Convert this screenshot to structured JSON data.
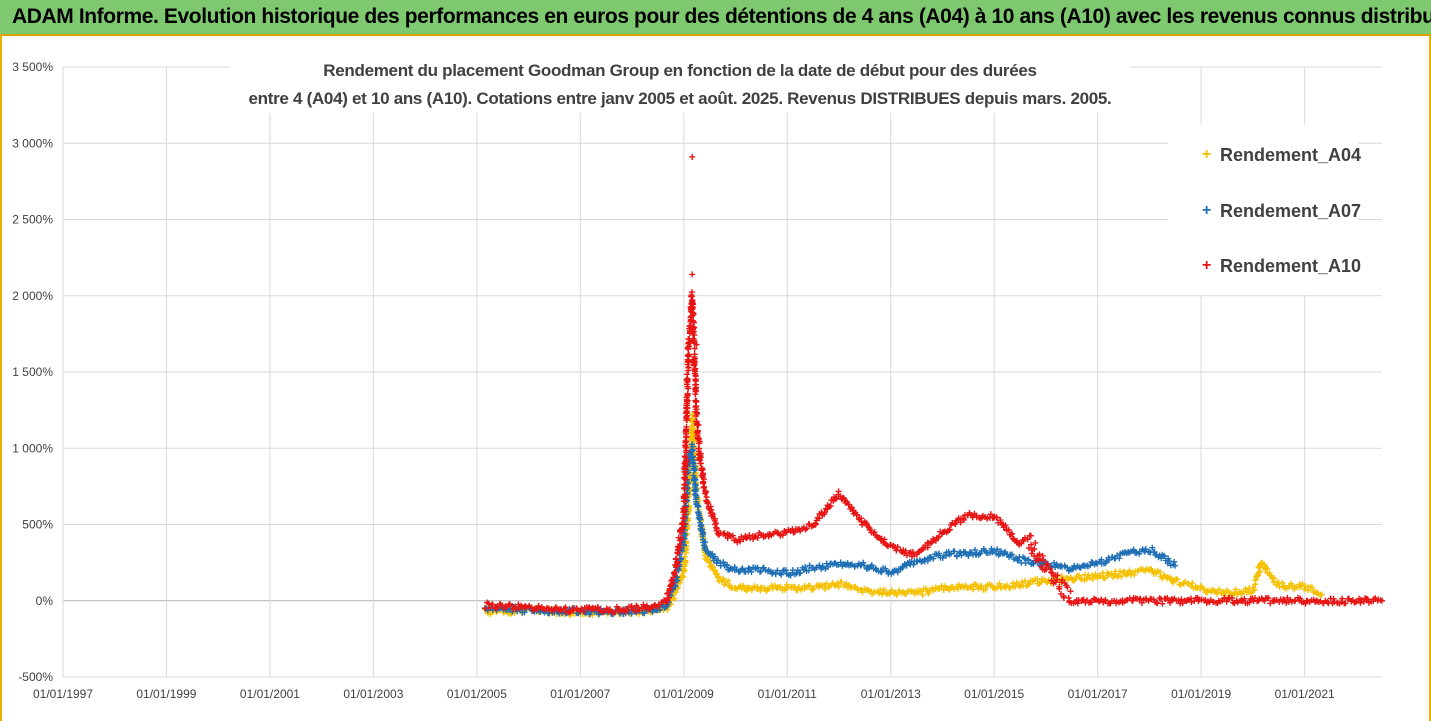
{
  "banner": {
    "text": "ADAM Informe. Evolution historique des performances en euros pour des détentions de 4 ans (A04) à 10 ans (A10) avec les revenus connus distribués"
  },
  "chart_data": {
    "type": "scatter",
    "title_line1": "Rendement du placement Goodman Group en fonction de la date de début pour des durées",
    "title_line2": "entre 4 (A04) et 10 ans (A10). Cotations entre janv 2005 et août. 2025. Revenus DISTRIBUES depuis mars. 2005.",
    "xlabel": "",
    "ylabel": "",
    "x_domain": [
      "1997-01-01",
      "2022-07-01"
    ],
    "y_range": [
      -500,
      3500
    ],
    "y_ticks": [
      -500,
      0,
      500,
      1000,
      1500,
      2000,
      2500,
      3000,
      3500
    ],
    "y_tick_labels": [
      "-500%",
      "0%",
      "500%",
      "1 000%",
      "1 500%",
      "2 000%",
      "2 500%",
      "3 000%",
      "3 500%"
    ],
    "x_ticks": [
      "1997-01-01",
      "1999-01-01",
      "2001-01-01",
      "2003-01-01",
      "2005-01-01",
      "2007-01-01",
      "2009-01-01",
      "2011-01-01",
      "2013-01-01",
      "2015-01-01",
      "2017-01-01",
      "2019-01-01",
      "2021-01-01"
    ],
    "x_tick_labels": [
      "01/01/1997",
      "01/01/1999",
      "01/01/2001",
      "01/01/2003",
      "01/01/2005",
      "01/01/2007",
      "01/01/2009",
      "01/01/2011",
      "01/01/2013",
      "01/01/2015",
      "01/01/2017",
      "01/01/2019",
      "01/01/2021"
    ],
    "grid": "vertical-and-horizontal",
    "legend_position": "right",
    "marker": "+",
    "series": [
      {
        "name": "Rendement_A04",
        "color": "#f5c000",
        "x": [
          "2005-03-01",
          "2005-07-01",
          "2006-01-01",
          "2006-07-01",
          "2007-01-01",
          "2007-07-01",
          "2008-01-01",
          "2008-05-01",
          "2008-09-01",
          "2008-11-01",
          "2009-01-01",
          "2009-02-01",
          "2009-03-01",
          "2009-04-01",
          "2009-05-01",
          "2009-06-01",
          "2009-09-01",
          "2010-01-01",
          "2010-07-01",
          "2011-01-01",
          "2011-07-01",
          "2012-01-01",
          "2012-07-01",
          "2013-01-01",
          "2013-07-01",
          "2014-01-01",
          "2014-07-01",
          "2015-01-01",
          "2015-07-01",
          "2016-01-01",
          "2016-07-01",
          "2017-01-01",
          "2017-07-01",
          "2018-01-01",
          "2018-07-01",
          "2019-01-01",
          "2019-07-01",
          "2020-01-01",
          "2020-03-01",
          "2020-07-01",
          "2021-01-01",
          "2021-05-01"
        ],
        "y": [
          -70,
          -70,
          -65,
          -70,
          -75,
          -75,
          -75,
          -70,
          -50,
          50,
          200,
          600,
          1200,
          700,
          500,
          300,
          150,
          80,
          80,
          90,
          80,
          110,
          60,
          60,
          50,
          80,
          90,
          90,
          110,
          130,
          150,
          160,
          180,
          200,
          130,
          80,
          50,
          70,
          250,
          100,
          90,
          40
        ]
      },
      {
        "name": "Rendement_A07",
        "color": "#1f6fb5",
        "x": [
          "2005-03-01",
          "2005-07-01",
          "2006-01-01",
          "2006-07-01",
          "2007-01-01",
          "2007-07-01",
          "2008-01-01",
          "2008-05-01",
          "2008-09-01",
          "2008-11-01",
          "2009-01-01",
          "2009-02-01",
          "2009-03-01",
          "2009-04-01",
          "2009-05-01",
          "2009-06-01",
          "2009-09-01",
          "2010-01-01",
          "2010-07-01",
          "2011-01-01",
          "2011-07-01",
          "2012-01-01",
          "2012-07-01",
          "2013-01-01",
          "2013-07-01",
          "2014-01-01",
          "2014-07-01",
          "2015-01-01",
          "2015-07-01",
          "2016-01-01",
          "2016-07-01",
          "2017-01-01",
          "2017-07-01",
          "2018-01-01",
          "2018-07-01"
        ],
        "y": [
          -50,
          -55,
          -60,
          -65,
          -70,
          -70,
          -70,
          -60,
          -30,
          120,
          400,
          900,
          1000,
          650,
          500,
          350,
          250,
          200,
          200,
          180,
          220,
          240,
          230,
          180,
          260,
          300,
          310,
          330,
          270,
          240,
          210,
          250,
          300,
          340,
          230
        ]
      },
      {
        "name": "Rendement_A10",
        "color": "#e81515",
        "x": [
          "2005-03-01",
          "2005-07-01",
          "2006-01-01",
          "2006-07-01",
          "2007-01-01",
          "2007-07-01",
          "2008-01-01",
          "2008-05-01",
          "2008-09-01",
          "2008-11-01",
          "2009-01-01",
          "2009-02-01",
          "2009-03-01",
          "2009-04-01",
          "2009-05-01",
          "2009-06-01",
          "2009-09-01",
          "2010-01-01",
          "2010-07-01",
          "2011-01-01",
          "2011-07-01",
          "2012-01-01",
          "2012-07-01",
          "2013-01-01",
          "2013-07-01",
          "2014-01-01",
          "2014-07-01",
          "2015-01-01",
          "2015-07-01",
          "2015-09-01",
          "2016-07-01",
          "2017-07-01",
          "2018-07-01",
          "2019-07-01",
          "2020-07-01",
          "2021-07-01",
          "2022-07-01"
        ],
        "y": [
          -30,
          -35,
          -45,
          -55,
          -60,
          -60,
          -55,
          -40,
          0,
          200,
          550,
          1600,
          2000,
          1200,
          900,
          700,
          450,
          400,
          430,
          450,
          500,
          700,
          500,
          350,
          300,
          450,
          560,
          550,
          380,
          400,
          0,
          0,
          0,
          0,
          0,
          0,
          0
        ]
      }
    ],
    "outliers": [
      {
        "series": "Rendement_A10",
        "x": "2009-03-01",
        "y": 2910
      },
      {
        "series": "Rendement_A10",
        "x": "2009-03-01",
        "y": 2140
      },
      {
        "series": "Rendement_A10",
        "x": "2009-04-01",
        "y": 1680
      }
    ]
  }
}
